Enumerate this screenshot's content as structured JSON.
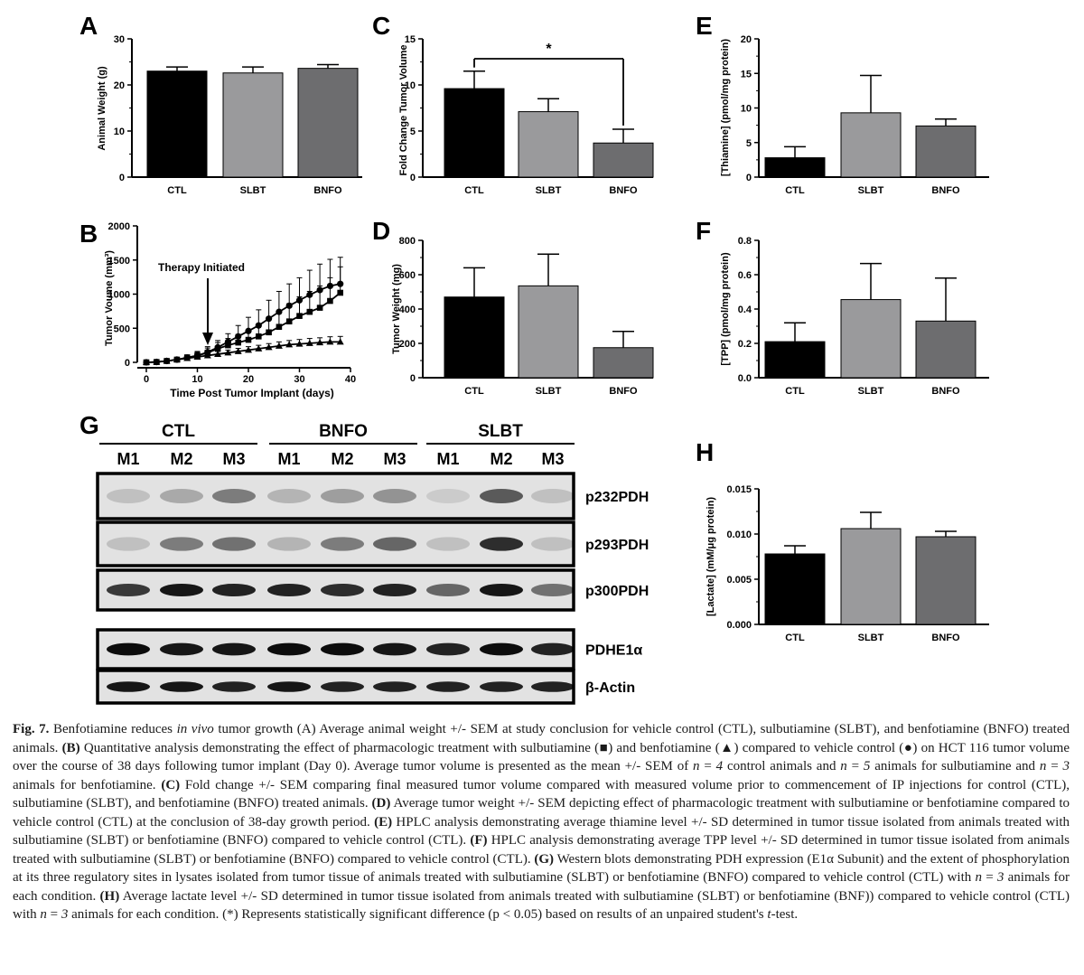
{
  "panel_letters": [
    "A",
    "B",
    "C",
    "D",
    "E",
    "F",
    "G",
    "H"
  ],
  "groups": [
    "CTL",
    "SLBT",
    "BNFO"
  ],
  "colors": {
    "CTL": "#000000",
    "SLBT": "#9a9a9c",
    "BNFO": "#6d6d6f"
  },
  "chart_data": [
    {
      "id": "A",
      "type": "bar",
      "categories": [
        "CTL",
        "SLBT",
        "BNFO"
      ],
      "values": [
        23.0,
        22.6,
        23.6
      ],
      "errors": [
        0.9,
        1.3,
        0.8
      ],
      "ylabel": "Animal Weight (g)",
      "ylim": [
        0,
        30
      ],
      "yticks": [
        "0",
        "10",
        "20",
        "30"
      ]
    },
    {
      "id": "B",
      "type": "line",
      "xlabel": "Time Post Tumor Implant (days)",
      "ylabel": "Tumor Voume (mm³)",
      "xlim": [
        0,
        40
      ],
      "ylim": [
        0,
        2000
      ],
      "xticks": [
        "0",
        "10",
        "20",
        "30",
        "40"
      ],
      "yticks": [
        "0",
        "500",
        "1000",
        "1500",
        "2000"
      ],
      "annotation": "Therapy Initiated",
      "series": [
        {
          "marker": "circle",
          "x": [
            0,
            2,
            4,
            6,
            8,
            10,
            12,
            14,
            16,
            18,
            20,
            22,
            24,
            26,
            28,
            30,
            32,
            34,
            36,
            38
          ],
          "y": [
            0,
            5,
            20,
            40,
            70,
            100,
            150,
            220,
            300,
            380,
            460,
            540,
            640,
            740,
            830,
            910,
            990,
            1060,
            1120,
            1150
          ],
          "err": [
            0,
            5,
            15,
            25,
            40,
            60,
            80,
            100,
            120,
            160,
            200,
            230,
            270,
            300,
            320,
            330,
            360,
            380,
            390,
            390
          ]
        },
        {
          "marker": "square",
          "x": [
            0,
            2,
            4,
            6,
            8,
            10,
            12,
            14,
            16,
            18,
            20,
            22,
            24,
            26,
            28,
            30,
            32,
            34,
            36,
            38
          ],
          "y": [
            0,
            5,
            20,
            40,
            70,
            100,
            140,
            200,
            250,
            290,
            330,
            380,
            440,
            520,
            600,
            680,
            740,
            800,
            900,
            1020
          ],
          "err": [
            0,
            5,
            15,
            25,
            35,
            50,
            70,
            90,
            100,
            120,
            140,
            170,
            200,
            220,
            260,
            280,
            300,
            320,
            340,
            380
          ]
        },
        {
          "marker": "triangle",
          "x": [
            0,
            2,
            4,
            6,
            8,
            10,
            12,
            14,
            16,
            18,
            20,
            22,
            24,
            26,
            28,
            30,
            32,
            34,
            36,
            38
          ],
          "y": [
            0,
            5,
            20,
            40,
            60,
            80,
            100,
            120,
            140,
            160,
            180,
            200,
            220,
            240,
            260,
            270,
            280,
            290,
            300,
            300
          ],
          "err": [
            0,
            5,
            10,
            15,
            20,
            25,
            30,
            40,
            40,
            45,
            50,
            50,
            55,
            60,
            60,
            65,
            70,
            70,
            75,
            80
          ]
        }
      ]
    },
    {
      "id": "C",
      "type": "bar",
      "categories": [
        "CTL",
        "SLBT",
        "BNFO"
      ],
      "values": [
        9.6,
        7.1,
        3.7
      ],
      "errors": [
        1.9,
        1.4,
        1.5
      ],
      "ylabel": "Fold Change Tumor Volume",
      "ylim": [
        0,
        15
      ],
      "yticks": [
        "0",
        "5",
        "10",
        "15"
      ],
      "annotation": "*"
    },
    {
      "id": "D",
      "type": "bar",
      "categories": [
        "CTL",
        "SLBT",
        "BNFO"
      ],
      "values": [
        470,
        535,
        175
      ],
      "errors": [
        170,
        185,
        95
      ],
      "ylabel": "Tumor Weight (mg)",
      "ylim": [
        0,
        800
      ],
      "yticks": [
        "0",
        "200",
        "400",
        "600",
        "800"
      ]
    },
    {
      "id": "E",
      "type": "bar",
      "categories": [
        "CTL",
        "SLBT",
        "BNFO"
      ],
      "values": [
        2.8,
        9.3,
        7.4
      ],
      "errors": [
        1.6,
        5.4,
        1.0
      ],
      "ylabel": "[Thiamine] (pmol/mg protein)",
      "ylim": [
        0,
        20
      ],
      "yticks": [
        "0",
        "5",
        "10",
        "15",
        "20"
      ]
    },
    {
      "id": "F",
      "type": "bar",
      "categories": [
        "CTL",
        "SLBT",
        "BNFO"
      ],
      "values": [
        0.21,
        0.455,
        0.33
      ],
      "errors": [
        0.11,
        0.21,
        0.25
      ],
      "ylabel": "[TPP] (pmol/mg protein)",
      "ylim": [
        0,
        0.8
      ],
      "yticks": [
        "0.0",
        "0.2",
        "0.4",
        "0.6",
        "0.8"
      ]
    },
    {
      "id": "H",
      "type": "bar",
      "categories": [
        "CTL",
        "SLBT",
        "BNFO"
      ],
      "values": [
        0.0078,
        0.0106,
        0.0097
      ],
      "errors": [
        0.0009,
        0.0018,
        0.0006
      ],
      "ylabel": "[Lactate] (mM/μg protein)",
      "ylim": [
        0,
        0.015
      ],
      "yticks": [
        "0.000",
        "0.005",
        "0.010",
        "0.015"
      ]
    }
  ],
  "western_blot": {
    "groups": [
      "CTL",
      "BNFO",
      "SLBT"
    ],
    "lanes": [
      "M1",
      "M2",
      "M3",
      "M1",
      "M2",
      "M3",
      "M1",
      "M2",
      "M3"
    ],
    "bands": [
      "p232PDH",
      "p293PDH",
      "p300PDH",
      "PDHE1α",
      "β-Actin"
    ]
  },
  "caption": {
    "label": "Fig. 7.",
    "parts": [
      {
        "b": false,
        "t": " Benfotiamine reduces "
      },
      {
        "i": true,
        "t": "in vivo"
      },
      {
        "b": false,
        "t": " tumor growth (A) Average animal weight +/- SEM at study conclusion for vehicle control (CTL), sulbutiamine (SLBT), and benfotiamine (BNFO) treated animals. "
      },
      {
        "b": true,
        "t": "(B)"
      },
      {
        "b": false,
        "t": " Quantitative analysis demonstrating the effect of pharmacologic treatment with sulbutiamine (■) and benfotiamine (▲) compared to vehicle control (●) on HCT 116 tumor volume over the course of 38 days following tumor implant (Day 0). Average tumor volume is presented as the mean +/- SEM of "
      },
      {
        "i": true,
        "t": "n"
      },
      {
        "b": false,
        "t": " = "
      },
      {
        "i": true,
        "t": "4"
      },
      {
        "b": false,
        "t": " control animals and "
      },
      {
        "i": true,
        "t": "n"
      },
      {
        "b": false,
        "t": " = "
      },
      {
        "i": true,
        "t": "5"
      },
      {
        "b": false,
        "t": " animals for sulbutiamine and "
      },
      {
        "i": true,
        "t": "n"
      },
      {
        "b": false,
        "t": " = "
      },
      {
        "i": true,
        "t": "3"
      },
      {
        "b": false,
        "t": " animals for benfotiamine. "
      },
      {
        "b": true,
        "t": "(C)"
      },
      {
        "b": false,
        "t": " Fold change +/- SEM comparing final measured tumor volume compared with measured volume prior to commencement of IP injections for control (CTL), sulbutiamine (SLBT), and benfotiamine (BNFO) treated animals. "
      },
      {
        "b": true,
        "t": "(D)"
      },
      {
        "b": false,
        "t": " Average tumor weight +/- SEM depicting effect of pharmacologic treatment with sulbutiamine or benfotiamine compared to vehicle control (CTL) at the conclusion of 38-day growth period. "
      },
      {
        "b": true,
        "t": "(E)"
      },
      {
        "b": false,
        "t": " HPLC analysis demonstrating average thiamine level +/- SD determined in tumor tissue isolated from animals treated with sulbutiamine (SLBT) or benfotiamine (BNFO) compared to vehicle control (CTL). "
      },
      {
        "b": true,
        "t": "(F)"
      },
      {
        "b": false,
        "t": " HPLC analysis demonstrating average TPP level +/- SD determined in tumor tissue isolated from animals treated with sulbutiamine (SLBT) or benfotiamine (BNFO) compared to vehicle control (CTL). "
      },
      {
        "b": true,
        "t": "(G)"
      },
      {
        "b": false,
        "t": " Western blots demonstrating PDH expression (E1α Subunit) and the extent of phosphorylation at its three regulatory sites in lysates isolated from tumor tissue of animals treated with sulbutiamine (SLBT) or benfotiamine (BNFO) compared to vehicle control (CTL) with "
      },
      {
        "i": true,
        "t": "n"
      },
      {
        "b": false,
        "t": " = "
      },
      {
        "i": true,
        "t": "3"
      },
      {
        "b": false,
        "t": " animals for each condition. "
      },
      {
        "b": true,
        "t": "(H)"
      },
      {
        "b": false,
        "t": " Average lactate level +/- SD determined in tumor tissue isolated from animals treated with sulbutiamine (SLBT) or benfotiamine (BNF)) compared to vehicle control (CTL) with "
      },
      {
        "i": true,
        "t": "n"
      },
      {
        "b": false,
        "t": " = "
      },
      {
        "i": true,
        "t": "3"
      },
      {
        "b": false,
        "t": " animals for each condition. (*) Represents statistically significant difference (p < 0.05) based on results of an unpaired student's "
      },
      {
        "i": true,
        "t": "t"
      },
      {
        "b": false,
        "t": "-test."
      }
    ]
  }
}
